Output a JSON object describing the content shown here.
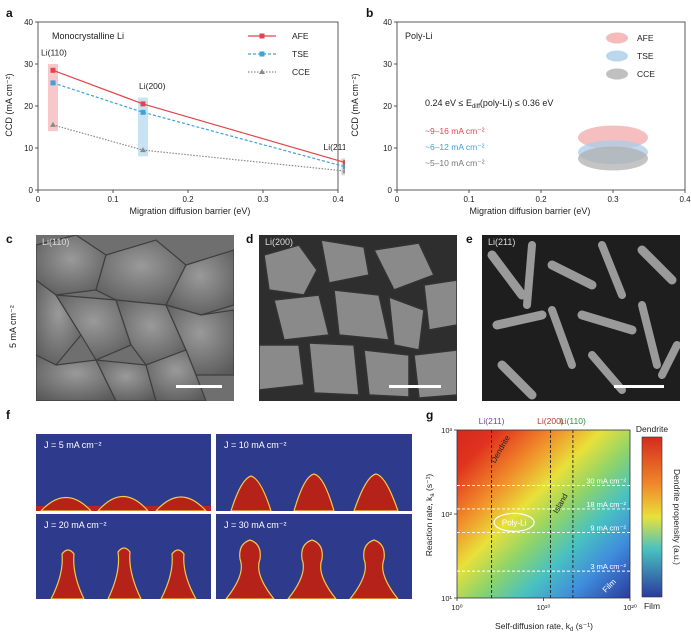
{
  "panel_labels": {
    "a": "a",
    "b": "b",
    "c": "c",
    "d": "d",
    "e": "e",
    "f": "f",
    "g": "g"
  },
  "colors": {
    "afe": "#e0474c",
    "tse": "#3fa2d8",
    "cce": "#8a8a8a",
    "afe_band": "#f5b9bc",
    "tse_band": "#b9dcf1"
  },
  "chart_data": [
    {
      "type": "line",
      "title": "Monocrystalline Li",
      "xlabel": "Migration diffusion barrier (eV)",
      "ylabel": "CCD (mA cm⁻²)",
      "xlim": [
        0,
        0.4
      ],
      "ylim": [
        0,
        40
      ],
      "xticks": [
        "0",
        "0.1",
        "0.2",
        "0.3",
        "0.4"
      ],
      "yticks": [
        "0",
        "10",
        "20",
        "30",
        "40"
      ],
      "x": [
        0.02,
        0.14,
        0.41
      ],
      "series": [
        {
          "name": "AFE",
          "values": [
            28.5,
            20.5,
            6.5
          ]
        },
        {
          "name": "TSE",
          "values": [
            25.5,
            18.5,
            5.5
          ]
        },
        {
          "name": "CCE",
          "values": [
            15.5,
            9.5,
            4.5
          ]
        }
      ],
      "annotations": [
        "Li(110)",
        "Li(200)",
        "Li(211)"
      ]
    },
    {
      "type": "scatter",
      "title": "Poly-Li",
      "xlabel": "Migration diffusion barrier (eV)",
      "ylabel": "CCD (mA cm⁻²)",
      "xlim": [
        0,
        0.4
      ],
      "ylim": [
        0,
        40
      ],
      "xticks": [
        "0",
        "0.1",
        "0.2",
        "0.3",
        "0.4"
      ],
      "yticks": [
        "0",
        "10",
        "20",
        "30",
        "40"
      ],
      "legend": [
        "AFE",
        "TSE",
        "CCE"
      ],
      "range_text": "0.24 eV ≤ E",
      "range_sub": "diff",
      "range_tail": "(poly-Li) ≤ 0.36 eV",
      "ccd_ranges": [
        "~9–16 mA cm⁻²",
        "~6–12 mA cm⁻²",
        "~5–10 mA cm⁻²"
      ],
      "ellipses": [
        {
          "name": "AFE",
          "x": 0.3,
          "y": 12.5
        },
        {
          "name": "TSE",
          "x": 0.3,
          "y": 9
        },
        {
          "name": "CCE",
          "x": 0.3,
          "y": 7.5
        }
      ]
    },
    {
      "type": "heatmap",
      "xlabel": "Self-diffusion rate, k",
      "xlabel_sub": "d",
      "xlabel_tail": " (s⁻¹)",
      "ylabel": "Reaction rate, k",
      "ylabel_sub": "a",
      "ylabel_tail": " (s⁻¹)",
      "xticks": [
        "10⁰",
        "10¹⁰",
        "10²⁰"
      ],
      "yticks": [
        "10³",
        "10²",
        "10¹"
      ],
      "xscale": "log",
      "yscale": "log",
      "colorbar": {
        "top": "Dendrite",
        "bottom": "Film",
        "label": "Dendrite propensity (a.u.)"
      },
      "vlines": [
        "Li(211)",
        "Li(200)",
        "Li(110)"
      ],
      "hlines": [
        "30 mA cm⁻²",
        "18 mA cm⁻²",
        "9 mA cm⁻²",
        "3 mA cm⁻²"
      ],
      "regions": [
        "Dendrite",
        "Island",
        "Film"
      ],
      "marker": "Poly-Li"
    }
  ],
  "sem": {
    "side_label": "5 mA cm⁻²",
    "images": [
      {
        "label": "Li(110)"
      },
      {
        "label": "Li(200)"
      },
      {
        "label": "Li(211)"
      }
    ]
  },
  "sims": [
    {
      "label": "J = 5 mA cm⁻²"
    },
    {
      "label": "J = 10 mA cm⁻²"
    },
    {
      "label": "J = 20 mA cm⁻²"
    },
    {
      "label": "J = 30 mA cm⁻²"
    }
  ]
}
